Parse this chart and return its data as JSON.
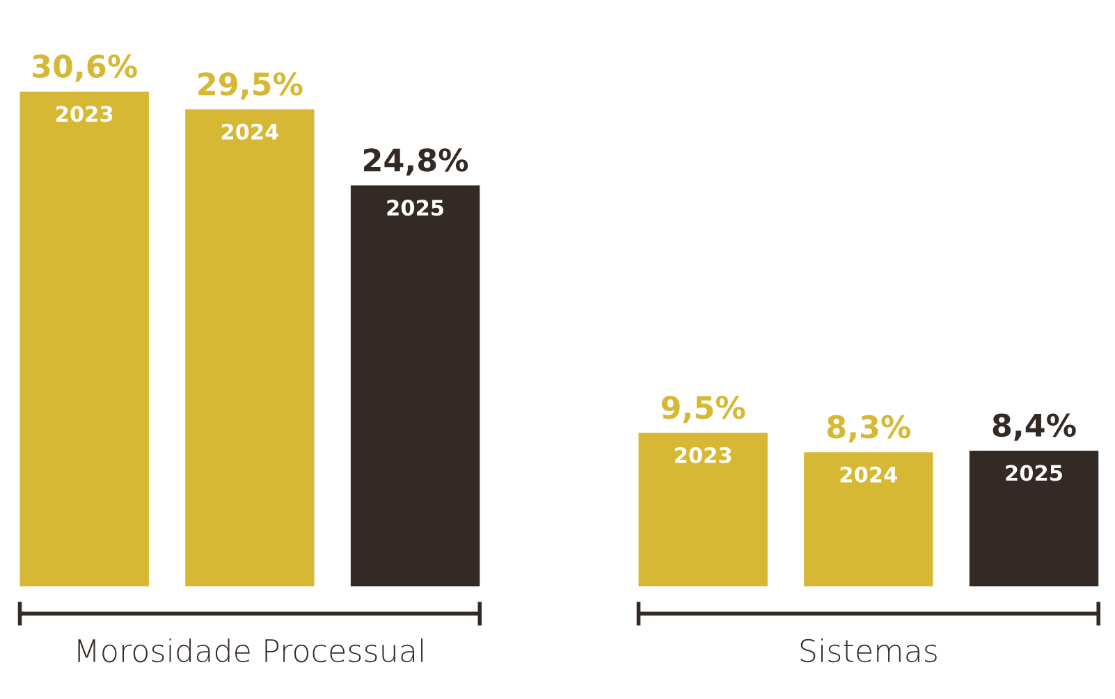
{
  "chart_data": {
    "type": "bar",
    "categories": [
      "Morosidade Processual",
      "Sistemas"
    ],
    "series": [
      {
        "name": "2023",
        "color": "#d6b834",
        "values": [
          30.6,
          9.5
        ],
        "value_labels": [
          "30,6%",
          "9,5%"
        ]
      },
      {
        "name": "2024",
        "color": "#d6b834",
        "values": [
          29.5,
          8.3
        ],
        "value_labels": [
          "29,5%",
          "8,3%"
        ]
      },
      {
        "name": "2025",
        "color": "#332a25",
        "values": [
          24.8,
          8.4
        ],
        "value_labels": [
          "24,8%",
          "8,4%"
        ]
      }
    ]
  }
}
